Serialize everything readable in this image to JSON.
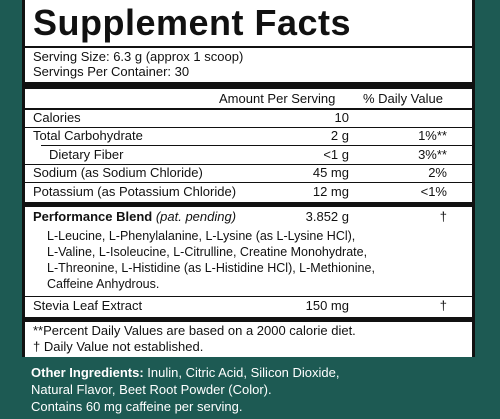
{
  "title": "Supplement Facts",
  "serving_size": "Serving Size: 6.3 g (approx 1 scoop)",
  "servings_per_container": "Servings Per Container: 30",
  "headers": {
    "amount": "Amount Per Serving",
    "dv": "% Daily Value"
  },
  "rows": [
    {
      "name": "Calories",
      "amount": "10",
      "dv": ""
    },
    {
      "name": "Total Carbohydrate",
      "amount": "2 g",
      "dv": "1%**"
    },
    {
      "name": "Dietary Fiber",
      "amount": "<1 g",
      "dv": "3%**"
    },
    {
      "name": "Sodium (as Sodium Chloride)",
      "amount": "45 mg",
      "dv": "2%"
    },
    {
      "name": "Potassium (as Potassium Chloride)",
      "amount": "12 mg",
      "dv": "<1%"
    }
  ],
  "blend": {
    "name": "Performance Blend",
    "note": "(pat. pending)",
    "amount": "3.852 g",
    "dv": "†",
    "ingredients": [
      "L-Leucine, L-Phenylalanine, L-Lysine (as L-Lysine HCl),",
      "L-Valine, L-Isoleucine, L-Citrulline, Creatine Monohydrate,",
      "L-Threonine, L-Histidine (as L-Histidine HCl), L-Methionine,",
      "Caffeine Anhydrous."
    ]
  },
  "stevia": {
    "name": "Stevia Leaf Extract",
    "amount": "150 mg",
    "dv": "†"
  },
  "footnotes": [
    "**Percent Daily Values are based on a 2000 calorie diet.",
    "† Daily Value not established."
  ],
  "other": {
    "label": "Other Ingredients:",
    "text": " Inulin, Citric Acid, Silicon Dioxide,",
    "line2": "Natural Flavor, Beet Root Powder (Color).",
    "line3": "Contains 60 mg caffeine per serving."
  },
  "colors": {
    "background": "#1d5a53",
    "panel": "#ffffff",
    "rule": "#111111"
  }
}
